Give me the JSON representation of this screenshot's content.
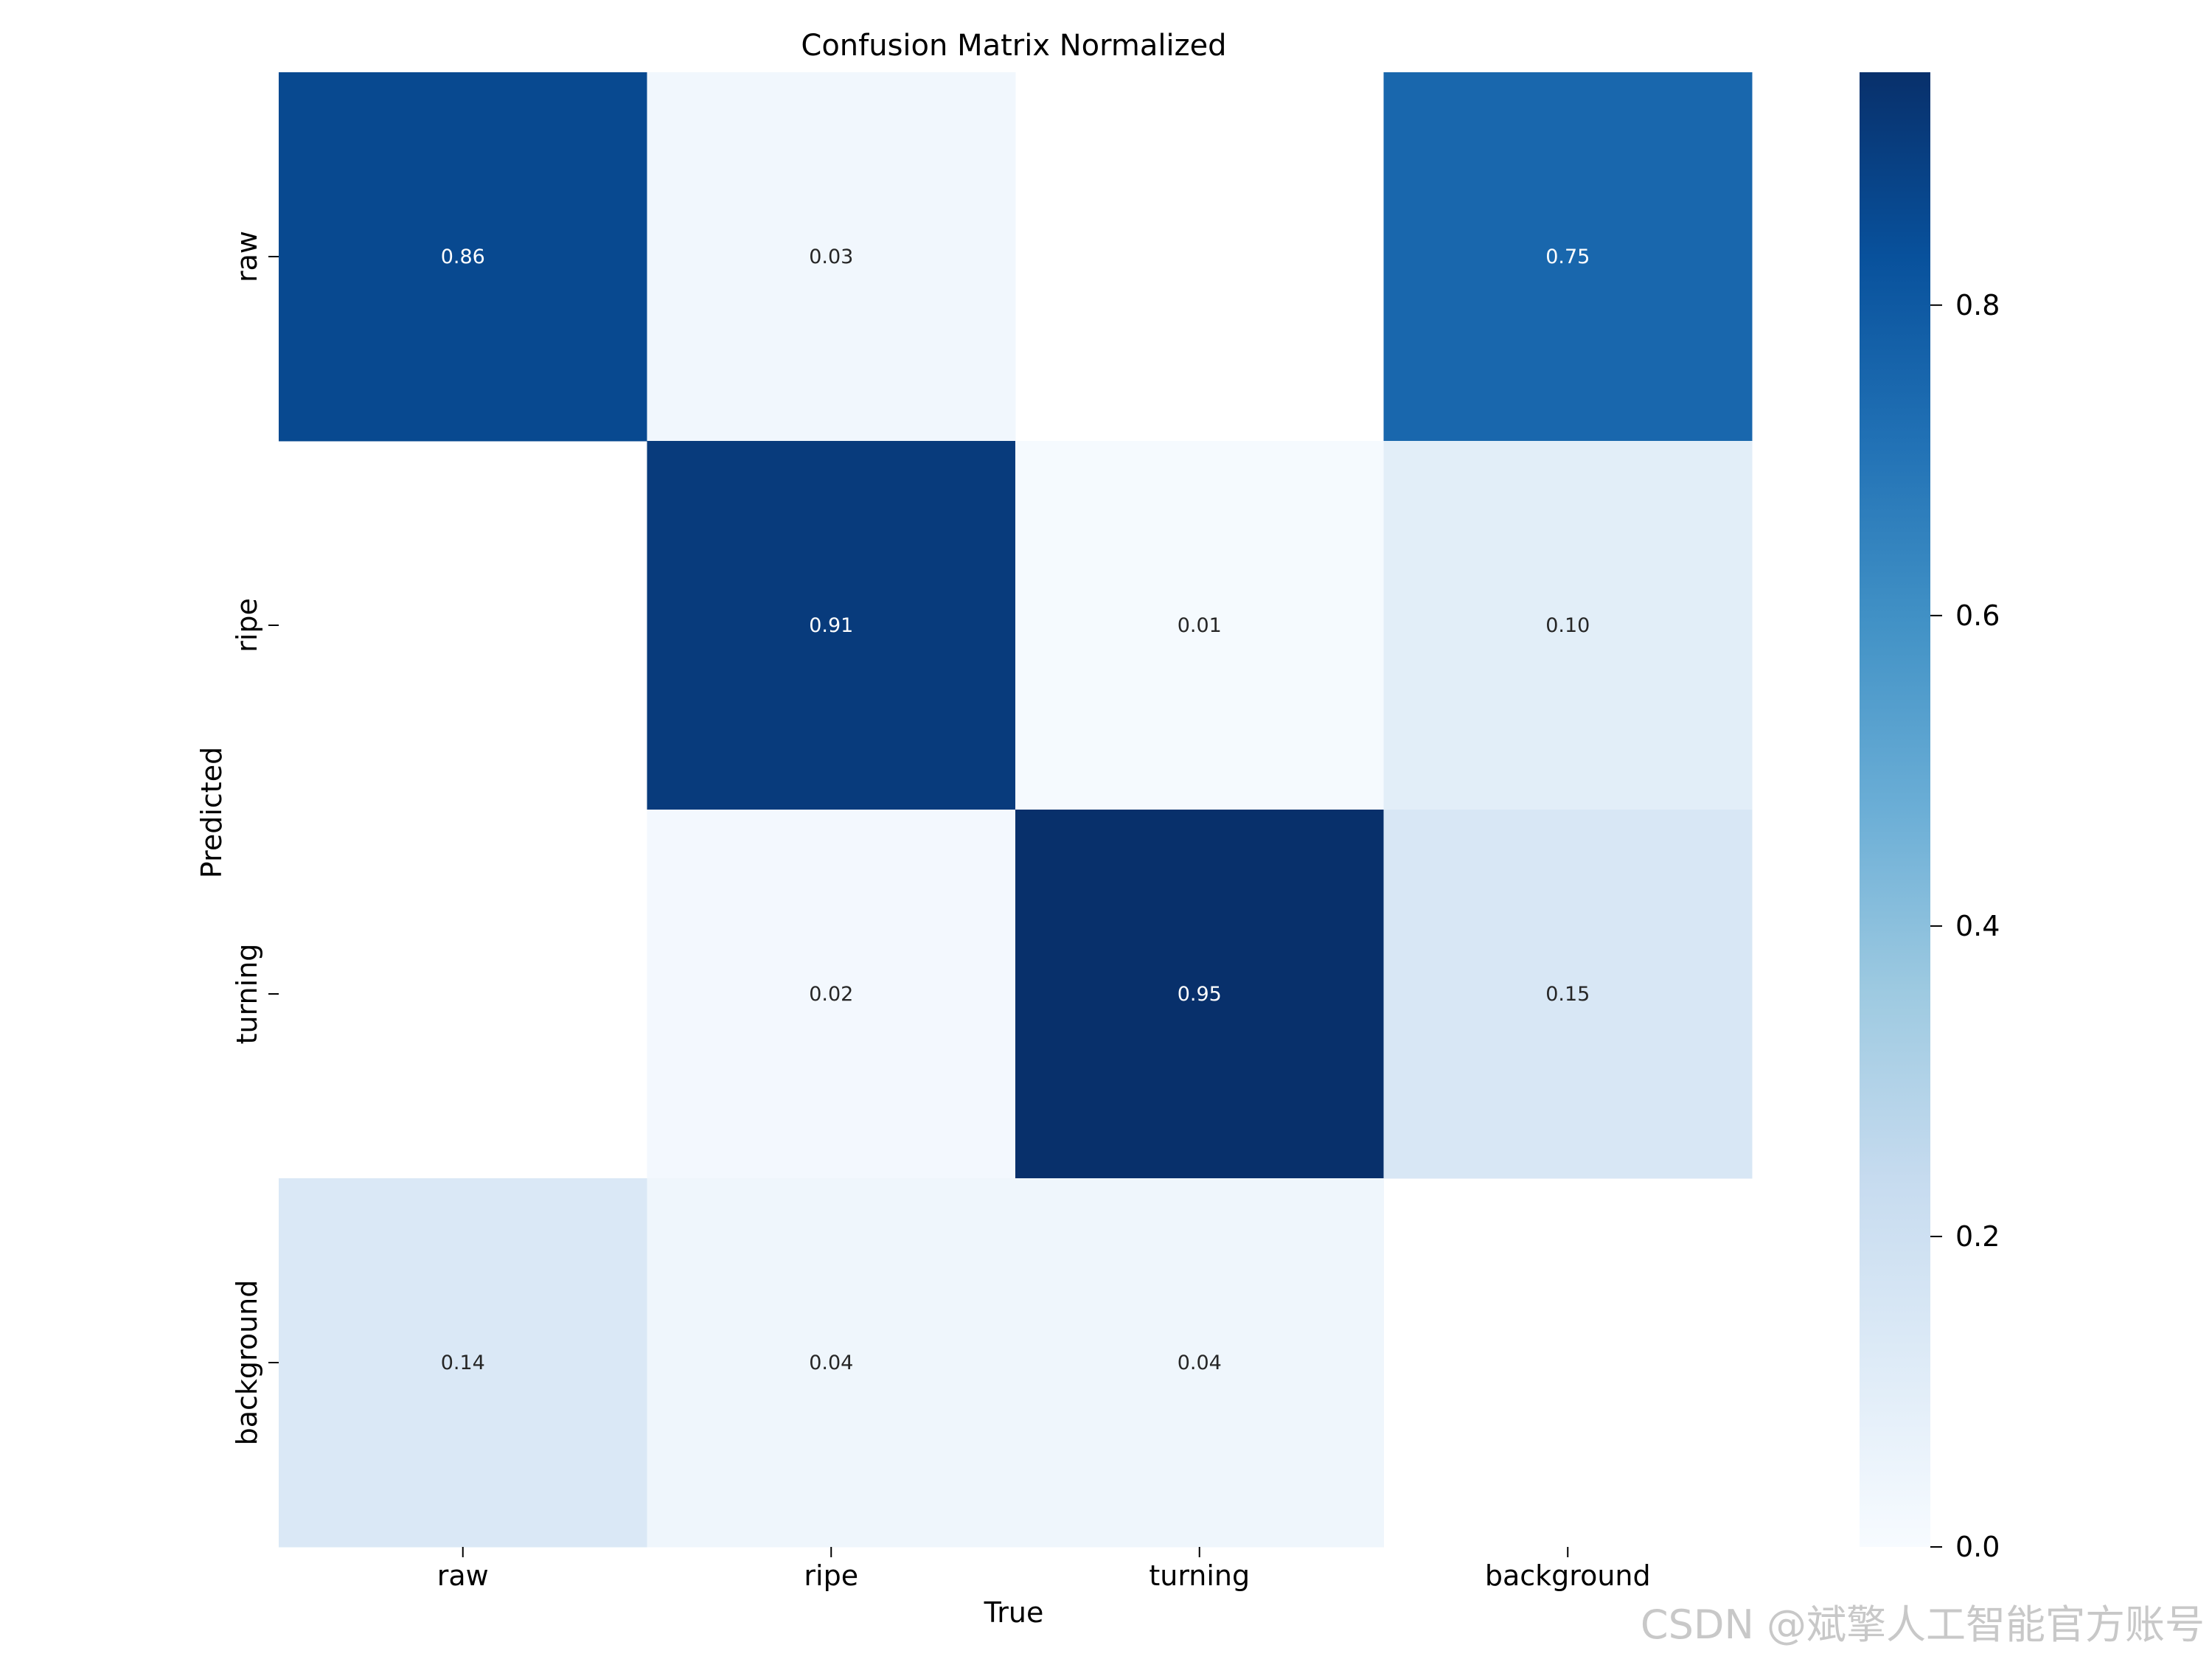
{
  "chart_data": {
    "type": "heatmap",
    "title": "Confusion Matrix Normalized",
    "xlabel": "True",
    "ylabel": "Predicted",
    "x_categories": [
      "raw",
      "ripe",
      "turning",
      "background"
    ],
    "y_categories": [
      "raw",
      "ripe",
      "turning",
      "background"
    ],
    "values": [
      [
        0.86,
        0.03,
        null,
        0.75
      ],
      [
        null,
        0.91,
        0.01,
        0.1
      ],
      [
        null,
        0.02,
        0.95,
        0.15
      ],
      [
        0.14,
        0.04,
        0.04,
        null
      ]
    ],
    "value_labels": [
      [
        "0.86",
        "0.03",
        "",
        "0.75"
      ],
      [
        "",
        "0.91",
        "0.01",
        "0.10"
      ],
      [
        "",
        "0.02",
        "0.95",
        "0.15"
      ],
      [
        "0.14",
        "0.04",
        "0.04",
        ""
      ]
    ],
    "colorscale": "Blues",
    "color_range": [
      0,
      0.95
    ],
    "colorbar_ticks": [
      "0.0",
      "0.2",
      "0.4",
      "0.6",
      "0.8"
    ],
    "colorbar_tick_values": [
      0.0,
      0.2,
      0.4,
      0.6,
      0.8
    ]
  },
  "watermark": "CSDN @斌擎人工智能官方账号"
}
